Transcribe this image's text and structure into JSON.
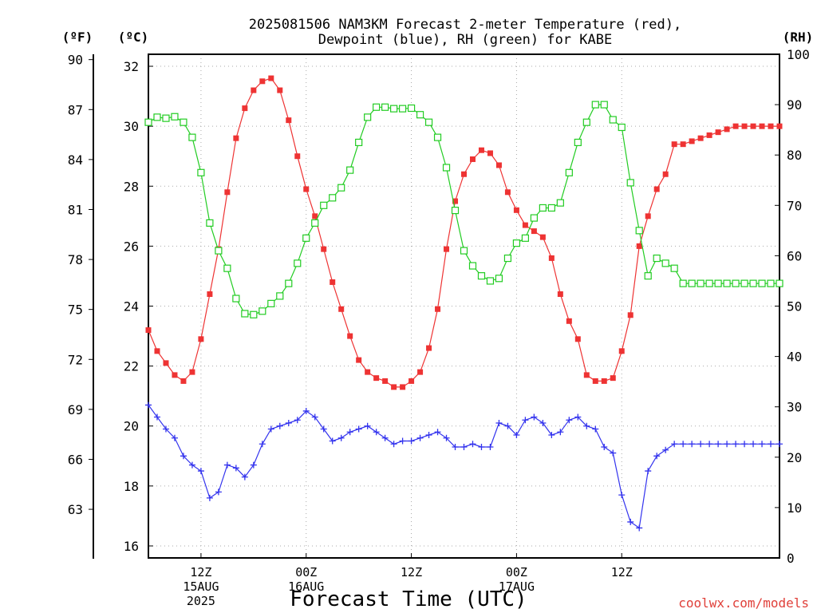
{
  "chart_data": {
    "type": "line",
    "title_line1": "2025081506 NAM3KM Forecast 2-meter Temperature (red),",
    "title_line2": "Dewpoint (blue), RH (green) for KABE",
    "xlabel": "Forecast Time (UTC)",
    "credit": "coolwx.com/models",
    "units": {
      "fahrenheit": "(ºF)",
      "celsius": "(ºC)",
      "rh": "(RH)"
    },
    "x_hours": [
      6,
      78
    ],
    "x_ticks": [
      {
        "hour": 12,
        "lines": [
          "12Z",
          "15AUG",
          "2025"
        ]
      },
      {
        "hour": 24,
        "lines": [
          "00Z",
          "16AUG"
        ]
      },
      {
        "hour": 36,
        "lines": [
          "12Z"
        ]
      },
      {
        "hour": 48,
        "lines": [
          "00Z",
          "17AUG"
        ]
      },
      {
        "hour": 60,
        "lines": [
          "12Z"
        ]
      }
    ],
    "celsius_axis": {
      "ylim": [
        15.6,
        32.4
      ],
      "ticks": [
        "16",
        "18",
        "20",
        "22",
        "24",
        "26",
        "28",
        "30",
        "32"
      ]
    },
    "fahrenheit_axis": {
      "ylim": [
        60.08,
        90.32
      ],
      "ticks": [
        "63",
        "66",
        "69",
        "72",
        "75",
        "78",
        "81",
        "84",
        "87",
        "90"
      ]
    },
    "rh_axis": {
      "ylim": [
        0,
        100
      ],
      "ticks": [
        "0",
        "10",
        "20",
        "30",
        "40",
        "50",
        "60",
        "70",
        "80",
        "90",
        "100"
      ]
    },
    "grid": true,
    "colors": {
      "temperature": "#ee3333",
      "dewpoint": "#3333ee",
      "rh": "#22cc22",
      "credit": "#e0403a"
    },
    "series": [
      {
        "name": "Temperature",
        "axis": "celsius",
        "marker": "filled-square",
        "color": "#ee3333",
        "x": [
          6,
          7,
          8,
          9,
          10,
          11,
          12,
          13,
          14,
          15,
          16,
          17,
          18,
          19,
          20,
          21,
          22,
          23,
          24,
          25,
          26,
          27,
          28,
          29,
          30,
          31,
          32,
          33,
          34,
          35,
          36,
          37,
          38,
          39,
          40,
          41,
          42,
          43,
          44,
          45,
          46,
          47,
          48,
          49,
          50,
          51,
          52,
          53,
          54,
          55,
          56,
          57,
          58,
          59,
          60,
          61,
          62,
          63,
          64,
          65,
          66,
          67,
          68,
          69,
          70,
          71,
          72,
          73,
          74,
          75,
          76,
          77,
          78
        ],
        "values": [
          23.2,
          22.5,
          22.1,
          21.7,
          21.5,
          21.8,
          22.9,
          24.4,
          25.9,
          27.8,
          29.6,
          30.6,
          31.2,
          31.5,
          31.6,
          31.2,
          30.2,
          29.0,
          27.9,
          27.0,
          25.9,
          24.8,
          23.9,
          23.0,
          22.2,
          21.8,
          21.6,
          21.5,
          21.3,
          21.3,
          21.5,
          21.8,
          22.6,
          23.9,
          25.9,
          27.5,
          28.4,
          28.9,
          29.2,
          29.1,
          28.7,
          27.8,
          27.2,
          26.7,
          26.5,
          26.3,
          25.6,
          24.4,
          23.5,
          22.9,
          21.7,
          21.5,
          21.5,
          21.6,
          22.5,
          23.7,
          26.0,
          27.0,
          27.9,
          28.4,
          29.4,
          29.4,
          29.5,
          29.6,
          29.7,
          29.8,
          29.9,
          30.0,
          30.0,
          30.0,
          30.0,
          30.0,
          30.0
        ]
      },
      {
        "name": "Dewpoint",
        "axis": "celsius",
        "marker": "plus",
        "color": "#3333ee",
        "x": [
          6,
          7,
          8,
          9,
          10,
          11,
          12,
          13,
          14,
          15,
          16,
          17,
          18,
          19,
          20,
          21,
          22,
          23,
          24,
          25,
          26,
          27,
          28,
          29,
          30,
          31,
          32,
          33,
          34,
          35,
          36,
          37,
          38,
          39,
          40,
          41,
          42,
          43,
          44,
          45,
          46,
          47,
          48,
          49,
          50,
          51,
          52,
          53,
          54,
          55,
          56,
          57,
          58,
          59,
          60,
          61,
          62,
          63,
          64,
          65,
          66,
          67,
          68,
          69,
          70,
          71,
          72,
          73,
          74,
          75,
          76,
          77,
          78
        ],
        "values": [
          20.7,
          20.3,
          19.9,
          19.6,
          19.0,
          18.7,
          18.5,
          17.6,
          17.8,
          18.7,
          18.6,
          18.3,
          18.7,
          19.4,
          19.9,
          20.0,
          20.1,
          20.2,
          20.5,
          20.3,
          19.9,
          19.5,
          19.6,
          19.8,
          19.9,
          20.0,
          19.8,
          19.6,
          19.4,
          19.5,
          19.5,
          19.6,
          19.7,
          19.8,
          19.6,
          19.3,
          19.3,
          19.4,
          19.3,
          19.3,
          20.1,
          20.0,
          19.7,
          20.2,
          20.3,
          20.1,
          19.7,
          19.8,
          20.2,
          20.3,
          20.0,
          19.9,
          19.3,
          19.1,
          17.7,
          16.8,
          16.6,
          18.5,
          19.0,
          19.2,
          19.4,
          19.4,
          19.4,
          19.4,
          19.4,
          19.4,
          19.4,
          19.4,
          19.4,
          19.4,
          19.4,
          19.4,
          19.4
        ]
      },
      {
        "name": "RH",
        "axis": "rh",
        "marker": "open-square",
        "color": "#22cc22",
        "x": [
          6,
          7,
          8,
          9,
          10,
          11,
          12,
          13,
          14,
          15,
          16,
          17,
          18,
          19,
          20,
          21,
          22,
          23,
          24,
          25,
          26,
          27,
          28,
          29,
          30,
          31,
          32,
          33,
          34,
          35,
          36,
          37,
          38,
          39,
          40,
          41,
          42,
          43,
          44,
          45,
          46,
          47,
          48,
          49,
          50,
          51,
          52,
          53,
          54,
          55,
          56,
          57,
          58,
          59,
          60,
          61,
          62,
          63,
          64,
          65,
          66,
          67,
          68,
          69,
          70,
          71,
          72,
          73,
          74,
          75,
          76,
          77,
          78
        ],
        "values": [
          86.5,
          87.5,
          87.3,
          87.6,
          86.5,
          83.5,
          76.5,
          66.5,
          61.0,
          57.5,
          51.5,
          48.5,
          48.3,
          49.0,
          50.5,
          52.0,
          54.5,
          58.5,
          63.5,
          66.5,
          70.0,
          71.5,
          73.5,
          77.0,
          82.5,
          87.5,
          89.5,
          89.5,
          89.2,
          89.2,
          89.3,
          88.0,
          86.5,
          83.5,
          77.5,
          69.0,
          61.0,
          58.0,
          56.0,
          55.0,
          55.5,
          59.5,
          62.5,
          63.5,
          67.5,
          69.5,
          69.5,
          70.5,
          76.5,
          82.5,
          86.5,
          90.0,
          90.0,
          87.0,
          85.5,
          74.5,
          65.0,
          56.0,
          59.5,
          58.5,
          57.5,
          54.5,
          54.5,
          54.5,
          54.5,
          54.5,
          54.5,
          54.5,
          54.5,
          54.5,
          54.5,
          54.5,
          54.5
        ]
      }
    ]
  }
}
